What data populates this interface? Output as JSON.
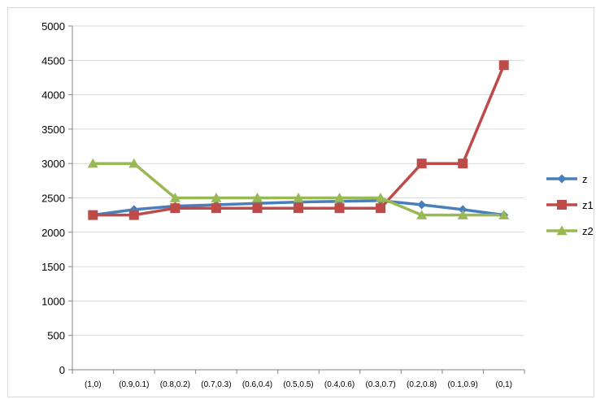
{
  "chart_data": {
    "type": "line",
    "title": "",
    "xlabel": "",
    "ylabel": "",
    "ylim": [
      0,
      5000
    ],
    "yticks": [
      0,
      500,
      1000,
      1500,
      2000,
      2500,
      3000,
      3500,
      4000,
      4500,
      5000
    ],
    "grid": "horizontal",
    "legend_position": "right",
    "categories": [
      "(1,0)",
      "(0.9,0.1)",
      "(0.8,0.2)",
      "(0.7,0.3)",
      "(0.6,0.4)",
      "(0.5,0.5)",
      "(0.4,0.6)",
      "(0.3,0.7)",
      "(0.2,0.8)",
      "(0.1,0.9)",
      "(0,1)"
    ],
    "series": [
      {
        "name": "z",
        "color": "#4a7ebb",
        "marker": "diamond",
        "values": [
          2250,
          2330,
          2380,
          2400,
          2420,
          2440,
          2450,
          2460,
          2400,
          2330,
          2250
        ]
      },
      {
        "name": "z1",
        "color": "#be4b48",
        "marker": "square",
        "values": [
          2250,
          2250,
          2350,
          2350,
          2350,
          2350,
          2350,
          2350,
          3000,
          3000,
          4430
        ]
      },
      {
        "name": "z2",
        "color": "#98b954",
        "marker": "triangle",
        "values": [
          3000,
          3000,
          2500,
          2500,
          2500,
          2500,
          2500,
          2500,
          2250,
          2250,
          2250
        ]
      }
    ]
  }
}
